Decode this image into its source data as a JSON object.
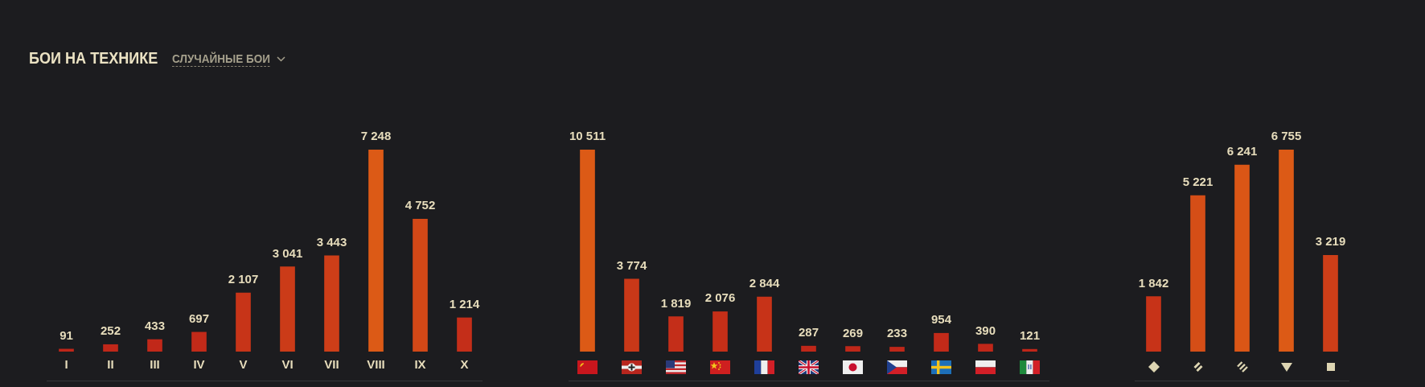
{
  "chart_data": [
    {
      "type": "bar",
      "title": "БОИ НА ТЕХНИКЕ",
      "subtitle": "СЛУЧАЙНЫЕ БОИ",
      "categories": [
        "I",
        "II",
        "III",
        "IV",
        "V",
        "VI",
        "VII",
        "VIII",
        "IX",
        "X"
      ],
      "values": [
        91,
        252,
        433,
        697,
        2107,
        3041,
        3443,
        7248,
        4752,
        1214
      ],
      "colors": [
        "#bf2619",
        "#c02719",
        "#c12819",
        "#c22a19",
        "#c73418",
        "#cb3b18",
        "#cd3e18",
        "#dc5a16",
        "#d24817",
        "#c42e19"
      ],
      "value_labels": [
        "91",
        "252",
        "433",
        "697",
        "2 107",
        "3 041",
        "3 443",
        "7 248",
        "4 752",
        "1 214"
      ],
      "tick_labels": "x"
    },
    {
      "type": "bar",
      "categories": [
        null,
        null,
        null,
        null,
        null,
        null,
        null,
        null,
        null,
        null,
        null
      ],
      "values": [
        10511,
        3774,
        1819,
        2076,
        2844,
        287,
        269,
        233,
        954,
        390,
        121
      ],
      "colors": [
        "#dc5a16",
        "#c93818",
        "#c42e19",
        "#c52f18",
        "#c73318",
        "#bf2719",
        "#bf2719",
        "#bf2719",
        "#c22a19",
        "#c02719",
        "#bf2619"
      ],
      "value_labels": [
        "10 511",
        "3 774",
        "1 819",
        "2 076",
        "2 844",
        "287",
        "269",
        "233",
        "954",
        "390",
        "121"
      ],
      "tick_labels": false
    },
    {
      "type": "bar",
      "categories": [
        null,
        null,
        null,
        null,
        null
      ],
      "values": [
        1842,
        5221,
        6241,
        6755,
        3219
      ],
      "colors": [
        "#c73318",
        "#d54e17",
        "#da5616",
        "#dc5a16",
        "#cd3e18"
      ],
      "value_labels": [
        "1 842",
        "5 221",
        "6 241",
        "6 755",
        "3 219"
      ],
      "tick_labels": false
    }
  ]
}
